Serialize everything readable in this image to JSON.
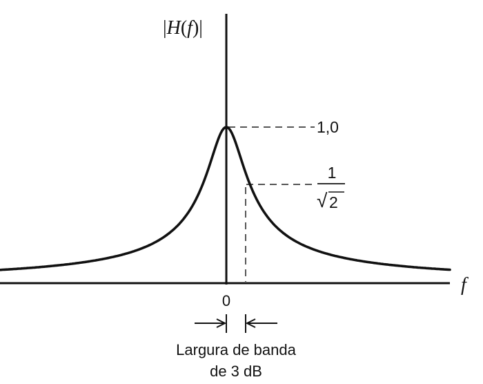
{
  "y_axis_label": {
    "bar": "|",
    "func": "H",
    "open": "(",
    "var": "f",
    "close": ")"
  },
  "x_axis_label": "f",
  "origin_label": "0",
  "peak_label": "1,0",
  "half_power_label": {
    "numerator": "1",
    "radical": "√",
    "radicand": "2"
  },
  "bandwidth_label": {
    "line1": "Largura de banda",
    "line2": "de 3 dB"
  },
  "colors": {
    "curve": "#111111",
    "axes": "#111111",
    "dashes": "#555555"
  }
}
